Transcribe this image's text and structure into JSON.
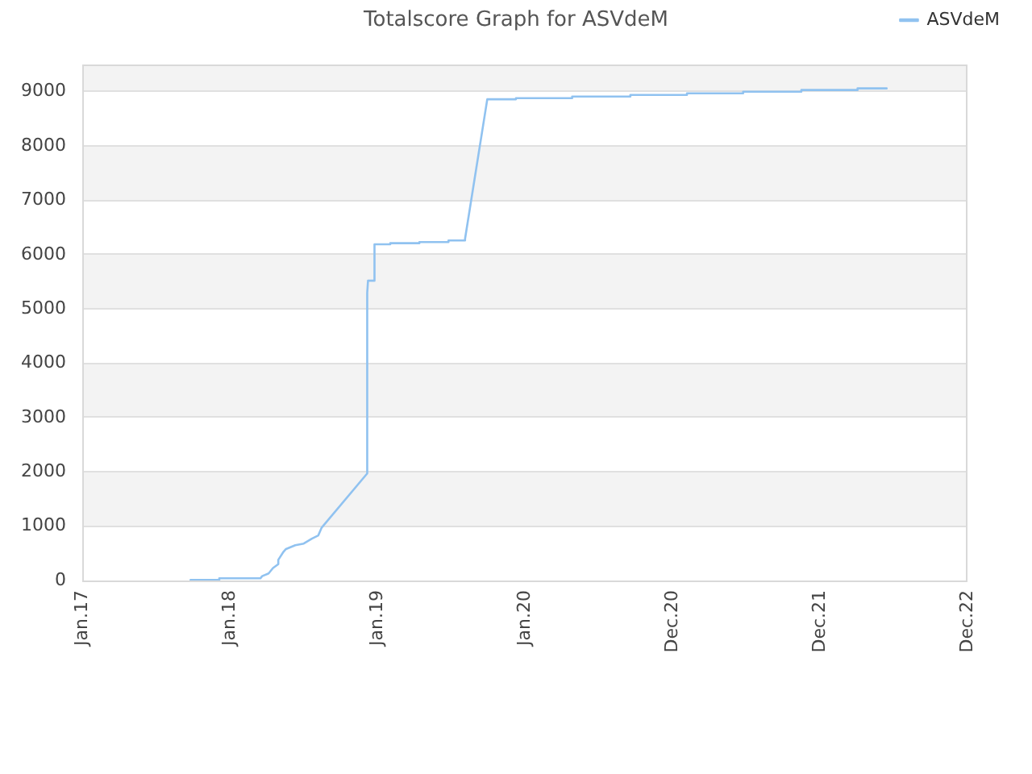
{
  "chart_data": {
    "type": "line",
    "title": "Totalscore Graph for ASVdeM",
    "x": [
      "2017-09-26",
      "2017-12-06",
      "2017-12-06",
      "2018-03-18",
      "2018-03-22",
      "2018-04-07",
      "2018-04-18",
      "2018-05-01",
      "2018-05-01",
      "2018-05-14",
      "2018-05-20",
      "2018-06-12",
      "2018-07-03",
      "2018-07-23",
      "2018-08-08",
      "2018-08-16",
      "2018-12-07",
      "2018-12-07",
      "2018-12-09",
      "2018-12-25",
      "2018-12-25",
      "2019-02-02",
      "2019-02-02",
      "2019-04-15",
      "2019-04-15",
      "2019-06-26",
      "2019-06-26",
      "2019-08-06",
      "2019-08-06",
      "2019-09-30",
      "2019-12-10",
      "2019-12-10",
      "2020-04-27",
      "2020-04-27",
      "2020-09-18",
      "2020-09-18",
      "2021-02-05",
      "2021-02-05",
      "2021-06-24",
      "2021-06-24",
      "2021-11-15",
      "2021-11-15",
      "2022-04-03",
      "2022-04-03",
      "2022-06-14"
    ],
    "series": [
      {
        "name": "ASVdeM",
        "color": "#90c2f0",
        "values": [
          10,
          10,
          40,
          40,
          80,
          130,
          230,
          300,
          380,
          530,
          580,
          650,
          680,
          770,
          830,
          970,
          1970,
          5300,
          5520,
          5520,
          6190,
          6190,
          6210,
          6210,
          6230,
          6230,
          6260,
          6260,
          6290,
          8860,
          8860,
          8880,
          8880,
          8910,
          8910,
          8940,
          8940,
          8970,
          8970,
          9000,
          9000,
          9030,
          9030,
          9060,
          9060
        ]
      }
    ],
    "xlim": [
      "2017-01-01",
      "2022-12-31"
    ],
    "xticks": [
      {
        "value": "2017-01-01",
        "label": "Jan.17"
      },
      {
        "value": "2018-01-01",
        "label": "Jan.18"
      },
      {
        "value": "2019-01-01",
        "label": "Jan.19"
      },
      {
        "value": "2020-01-01",
        "label": "Jan.20"
      },
      {
        "value": "2020-12-31",
        "label": "Dec.20"
      },
      {
        "value": "2021-12-31",
        "label": "Dec.21"
      },
      {
        "value": "2022-12-31",
        "label": "Dec.22"
      }
    ],
    "ylim": [
      0,
      9500
    ],
    "yticks": [
      0,
      1000,
      2000,
      3000,
      4000,
      5000,
      6000,
      7000,
      8000,
      9000
    ],
    "grid": "y",
    "legend": "top right"
  }
}
